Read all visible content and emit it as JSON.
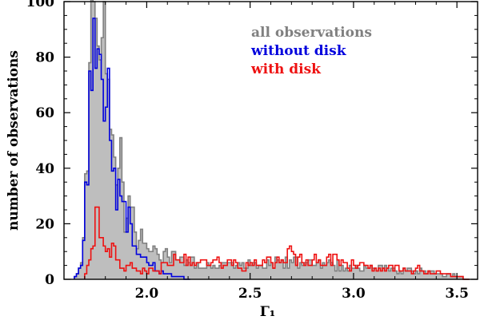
{
  "chart_data": {
    "type": "histogram",
    "title": "",
    "xlabel": "Γ₁",
    "ylabel": "number of observations",
    "xlim": [
      1.6,
      3.6
    ],
    "ylim": [
      0,
      100
    ],
    "bin_width": 0.01,
    "x_ticks": [
      "2.0",
      "2.5",
      "3.0",
      "3.5"
    ],
    "y_ticks": [
      "0",
      "20",
      "40",
      "60",
      "80",
      "100"
    ],
    "grid": false,
    "legend_position": "top-right",
    "series": [
      {
        "name": "all observations",
        "color": "#808080",
        "fill": "#bebebe",
        "points": [
          [
            1.65,
            1
          ],
          [
            1.68,
            6
          ],
          [
            1.7,
            38
          ],
          [
            1.72,
            78
          ],
          [
            1.74,
            100
          ],
          [
            1.76,
            84
          ],
          [
            1.78,
            87
          ],
          [
            1.8,
            74
          ],
          [
            1.82,
            54
          ],
          [
            1.84,
            44
          ],
          [
            1.86,
            40
          ],
          [
            1.88,
            35
          ],
          [
            1.9,
            22
          ],
          [
            1.92,
            26
          ],
          [
            1.94,
            17
          ],
          [
            1.96,
            14
          ],
          [
            1.98,
            13
          ],
          [
            2.0,
            11
          ],
          [
            2.02,
            10
          ],
          [
            2.05,
            9
          ],
          [
            2.1,
            8
          ],
          [
            2.15,
            7
          ],
          [
            2.2,
            6
          ],
          [
            2.3,
            5
          ],
          [
            2.4,
            6
          ],
          [
            2.5,
            5
          ],
          [
            2.6,
            6
          ],
          [
            2.7,
            6
          ],
          [
            2.8,
            5
          ],
          [
            2.9,
            5
          ],
          [
            3.0,
            4
          ],
          [
            3.1,
            4
          ],
          [
            3.2,
            3
          ],
          [
            3.3,
            3
          ],
          [
            3.4,
            2
          ],
          [
            3.5,
            1
          ],
          [
            3.55,
            0
          ]
        ]
      },
      {
        "name": "without disk",
        "color": "#0000dd",
        "points": [
          [
            1.65,
            1
          ],
          [
            1.68,
            5
          ],
          [
            1.7,
            35
          ],
          [
            1.72,
            75
          ],
          [
            1.74,
            94
          ],
          [
            1.76,
            83
          ],
          [
            1.78,
            72
          ],
          [
            1.8,
            62
          ],
          [
            1.82,
            50
          ],
          [
            1.84,
            40
          ],
          [
            1.86,
            36
          ],
          [
            1.88,
            28
          ],
          [
            1.9,
            17
          ],
          [
            1.92,
            20
          ],
          [
            1.94,
            12
          ],
          [
            1.96,
            9
          ],
          [
            1.98,
            8
          ],
          [
            2.0,
            6
          ],
          [
            2.02,
            5
          ],
          [
            2.05,
            3
          ],
          [
            2.1,
            2
          ],
          [
            2.15,
            1
          ],
          [
            2.2,
            0
          ]
        ]
      },
      {
        "name": "with disk",
        "color": "#ee1111",
        "points": [
          [
            1.7,
            2
          ],
          [
            1.72,
            7
          ],
          [
            1.74,
            12
          ],
          [
            1.76,
            26
          ],
          [
            1.78,
            15
          ],
          [
            1.8,
            10
          ],
          [
            1.82,
            8
          ],
          [
            1.84,
            12
          ],
          [
            1.86,
            7
          ],
          [
            1.88,
            4
          ],
          [
            1.9,
            5
          ],
          [
            1.92,
            6
          ],
          [
            1.94,
            4
          ],
          [
            1.96,
            3
          ],
          [
            1.98,
            4
          ],
          [
            2.0,
            2
          ],
          [
            2.02,
            4
          ],
          [
            2.05,
            3
          ],
          [
            2.08,
            6
          ],
          [
            2.1,
            5
          ],
          [
            2.15,
            7
          ],
          [
            2.2,
            8
          ],
          [
            2.25,
            6
          ],
          [
            2.3,
            5
          ],
          [
            2.35,
            6
          ],
          [
            2.4,
            7
          ],
          [
            2.45,
            4
          ],
          [
            2.5,
            6
          ],
          [
            2.55,
            5
          ],
          [
            2.6,
            6
          ],
          [
            2.65,
            7
          ],
          [
            2.7,
            10
          ],
          [
            2.75,
            6
          ],
          [
            2.8,
            7
          ],
          [
            2.85,
            5
          ],
          [
            2.9,
            9
          ],
          [
            2.95,
            6
          ],
          [
            3.0,
            5
          ],
          [
            3.05,
            5
          ],
          [
            3.1,
            4
          ],
          [
            3.15,
            3
          ],
          [
            3.2,
            5
          ],
          [
            3.25,
            3
          ],
          [
            3.3,
            4
          ],
          [
            3.35,
            2
          ],
          [
            3.4,
            3
          ],
          [
            3.45,
            2
          ],
          [
            3.5,
            1
          ],
          [
            3.55,
            0
          ]
        ]
      }
    ]
  }
}
